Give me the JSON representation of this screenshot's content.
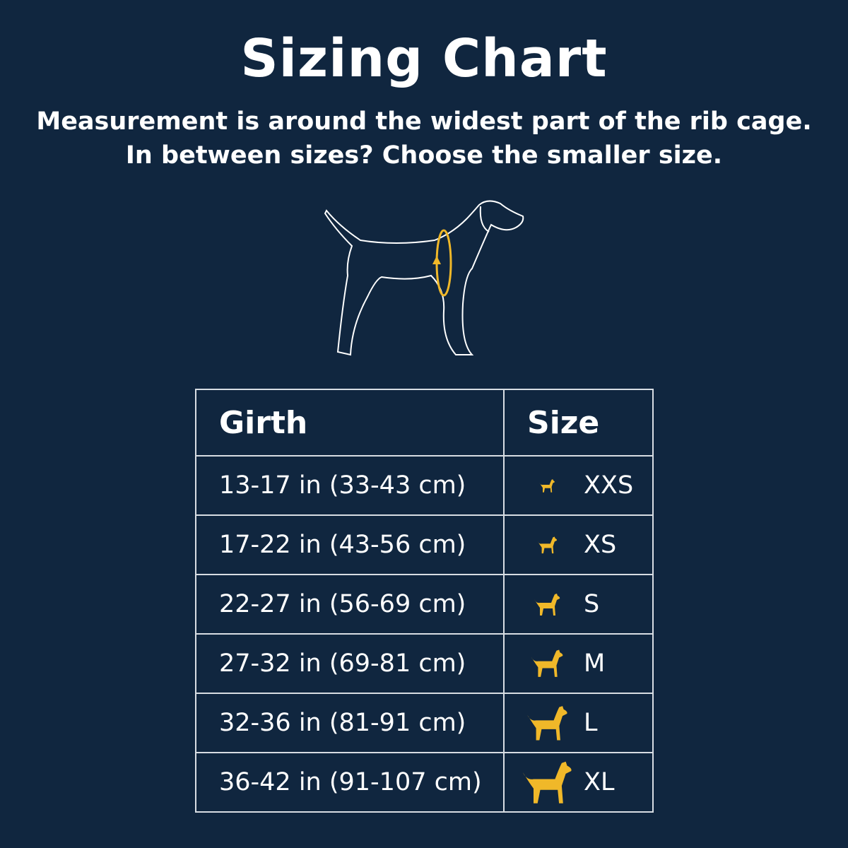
{
  "title": "Sizing Chart",
  "subtitle_lines": [
    "Measurement is around the widest part of the rib cage.",
    "In between sizes? Choose the smaller size."
  ],
  "colors": {
    "background": "#10263f",
    "accent": "#f0b829",
    "text": "#ffffff"
  },
  "table": {
    "headers": [
      "Girth",
      "Size"
    ],
    "rows": [
      {
        "girth": "13-17 in (33-43 cm)",
        "size": "XXS",
        "icon": "chihuahua-icon"
      },
      {
        "girth": "17-22 in (43-56 cm)",
        "size": "XS",
        "icon": "pomeranian-icon"
      },
      {
        "girth": "22-27 in (56-69 cm)",
        "size": "S",
        "icon": "poodle-icon"
      },
      {
        "girth": "27-32 in (69-81 cm)",
        "size": "M",
        "icon": "spaniel-icon"
      },
      {
        "girth": "32-36 in (81-91 cm)",
        "size": "L",
        "icon": "retriever-icon"
      },
      {
        "girth": "36-42 in (91-107 cm)",
        "size": "XL",
        "icon": "great-dane-icon"
      }
    ]
  }
}
